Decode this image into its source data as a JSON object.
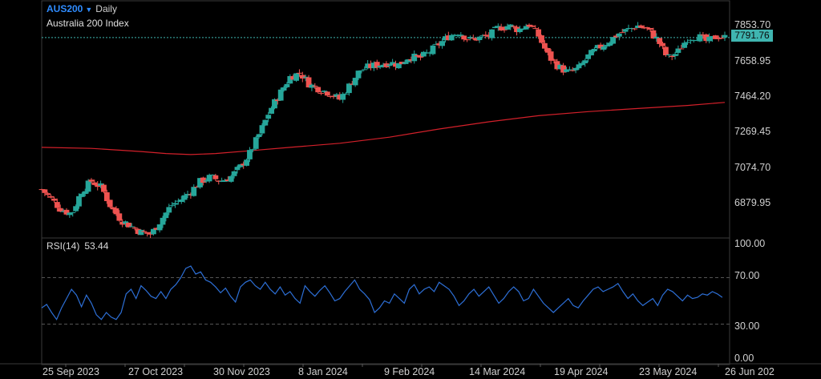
{
  "header": {
    "symbol": "AUS200",
    "period": "Daily",
    "subtitle": "Australia 200 Index",
    "dropdown_icon": "caret-down-icon"
  },
  "last_price": "7791.76",
  "rsi": {
    "label": "RSI(14)",
    "value": "53.44"
  },
  "price_axis": [
    "7853.70",
    "7658.95",
    "7464.20",
    "7269.45",
    "7074.70",
    "6879.95"
  ],
  "rsi_axis": [
    "100.00",
    "70.00",
    "30.00",
    "0.00"
  ],
  "x_axis": [
    "25 Sep 2023",
    "27 Oct 2023",
    "30 Nov 2023",
    "8 Jan 2024",
    "9 Feb 2024",
    "14 Mar 2024",
    "19 Apr 2024",
    "23 May 2024",
    "26 Jun 202"
  ],
  "colors": {
    "up": "#26a69a",
    "down": "#ef5350",
    "ma": "#d3202a",
    "rsi": "#2d6fd6",
    "last_line": "#3fb5b0",
    "badge": "#3fb5b0"
  },
  "chart_data": {
    "type": "candlestick",
    "price_range": [
      6820,
      7905
    ],
    "rsi_range": [
      0,
      100
    ],
    "rsi_levels": [
      70,
      30
    ],
    "x_range_days": [
      0,
      275
    ],
    "closes": [
      [
        0,
        7050
      ],
      [
        4,
        7000
      ],
      [
        8,
        6950
      ],
      [
        12,
        6930
      ],
      [
        16,
        7040
      ],
      [
        20,
        7090
      ],
      [
        24,
        7060
      ],
      [
        28,
        6960
      ],
      [
        32,
        6900
      ],
      [
        36,
        6870
      ],
      [
        40,
        6840
      ],
      [
        44,
        6830
      ],
      [
        48,
        6900
      ],
      [
        52,
        6970
      ],
      [
        56,
        7000
      ],
      [
        60,
        7040
      ],
      [
        64,
        7090
      ],
      [
        68,
        7110
      ],
      [
        72,
        7090
      ],
      [
        76,
        7110
      ],
      [
        80,
        7160
      ],
      [
        84,
        7230
      ],
      [
        88,
        7330
      ],
      [
        92,
        7440
      ],
      [
        96,
        7520
      ],
      [
        100,
        7600
      ],
      [
        104,
        7620
      ],
      [
        108,
        7560
      ],
      [
        112,
        7540
      ],
      [
        116,
        7520
      ],
      [
        120,
        7490
      ],
      [
        124,
        7560
      ],
      [
        128,
        7630
      ],
      [
        132,
        7650
      ],
      [
        136,
        7660
      ],
      [
        140,
        7670
      ],
      [
        144,
        7660
      ],
      [
        148,
        7700
      ],
      [
        152,
        7690
      ],
      [
        156,
        7720
      ],
      [
        160,
        7760
      ],
      [
        164,
        7800
      ],
      [
        168,
        7820
      ],
      [
        172,
        7780
      ],
      [
        176,
        7790
      ],
      [
        180,
        7800
      ],
      [
        184,
        7840
      ],
      [
        188,
        7850
      ],
      [
        192,
        7830
      ],
      [
        196,
        7860
      ],
      [
        200,
        7800
      ],
      [
        204,
        7700
      ],
      [
        208,
        7650
      ],
      [
        212,
        7620
      ],
      [
        216,
        7640
      ],
      [
        220,
        7700
      ],
      [
        224,
        7740
      ],
      [
        228,
        7770
      ],
      [
        232,
        7810
      ],
      [
        236,
        7830
      ],
      [
        240,
        7850
      ],
      [
        244,
        7830
      ],
      [
        248,
        7780
      ],
      [
        252,
        7690
      ],
      [
        256,
        7720
      ],
      [
        260,
        7790
      ],
      [
        264,
        7800
      ],
      [
        268,
        7770
      ],
      [
        272,
        7800
      ],
      [
        275,
        7792
      ]
    ],
    "ma_points": [
      [
        0,
        7255
      ],
      [
        20,
        7250
      ],
      [
        40,
        7235
      ],
      [
        50,
        7225
      ],
      [
        60,
        7220
      ],
      [
        70,
        7225
      ],
      [
        85,
        7240
      ],
      [
        100,
        7255
      ],
      [
        120,
        7275
      ],
      [
        140,
        7305
      ],
      [
        160,
        7345
      ],
      [
        180,
        7380
      ],
      [
        200,
        7410
      ],
      [
        220,
        7430
      ],
      [
        240,
        7445
      ],
      [
        260,
        7460
      ],
      [
        275,
        7475
      ]
    ],
    "rsi_values": [
      [
        0,
        44
      ],
      [
        2,
        47
      ],
      [
        4,
        40
      ],
      [
        6,
        34
      ],
      [
        8,
        44
      ],
      [
        10,
        52
      ],
      [
        12,
        60
      ],
      [
        14,
        55
      ],
      [
        16,
        45
      ],
      [
        18,
        55
      ],
      [
        20,
        48
      ],
      [
        22,
        38
      ],
      [
        24,
        34
      ],
      [
        26,
        40
      ],
      [
        28,
        36
      ],
      [
        30,
        34
      ],
      [
        32,
        40
      ],
      [
        34,
        56
      ],
      [
        36,
        60
      ],
      [
        38,
        52
      ],
      [
        40,
        63
      ],
      [
        42,
        59
      ],
      [
        44,
        54
      ],
      [
        46,
        52
      ],
      [
        48,
        58
      ],
      [
        50,
        52
      ],
      [
        52,
        60
      ],
      [
        54,
        64
      ],
      [
        56,
        70
      ],
      [
        58,
        78
      ],
      [
        60,
        80
      ],
      [
        62,
        73
      ],
      [
        64,
        75
      ],
      [
        66,
        68
      ],
      [
        68,
        66
      ],
      [
        70,
        62
      ],
      [
        72,
        57
      ],
      [
        74,
        61
      ],
      [
        76,
        54
      ],
      [
        78,
        49
      ],
      [
        80,
        62
      ],
      [
        82,
        66
      ],
      [
        84,
        68
      ],
      [
        86,
        63
      ],
      [
        88,
        60
      ],
      [
        90,
        66
      ],
      [
        92,
        60
      ],
      [
        94,
        56
      ],
      [
        96,
        62
      ],
      [
        98,
        55
      ],
      [
        100,
        58
      ],
      [
        102,
        52
      ],
      [
        104,
        48
      ],
      [
        106,
        63
      ],
      [
        108,
        58
      ],
      [
        110,
        54
      ],
      [
        112,
        59
      ],
      [
        114,
        63
      ],
      [
        116,
        57
      ],
      [
        118,
        50
      ],
      [
        120,
        52
      ],
      [
        122,
        58
      ],
      [
        124,
        63
      ],
      [
        126,
        68
      ],
      [
        128,
        60
      ],
      [
        130,
        56
      ],
      [
        132,
        51
      ],
      [
        134,
        40
      ],
      [
        136,
        44
      ],
      [
        138,
        50
      ],
      [
        140,
        48
      ],
      [
        142,
        56
      ],
      [
        144,
        52
      ],
      [
        146,
        48
      ],
      [
        148,
        60
      ],
      [
        150,
        64
      ],
      [
        152,
        56
      ],
      [
        154,
        60
      ],
      [
        156,
        62
      ],
      [
        158,
        58
      ],
      [
        160,
        66
      ],
      [
        162,
        63
      ],
      [
        164,
        60
      ],
      [
        166,
        54
      ],
      [
        168,
        46
      ],
      [
        170,
        50
      ],
      [
        172,
        56
      ],
      [
        174,
        60
      ],
      [
        176,
        54
      ],
      [
        178,
        58
      ],
      [
        180,
        62
      ],
      [
        182,
        55
      ],
      [
        184,
        48
      ],
      [
        186,
        52
      ],
      [
        188,
        58
      ],
      [
        190,
        62
      ],
      [
        192,
        58
      ],
      [
        194,
        50
      ],
      [
        196,
        52
      ],
      [
        198,
        60
      ],
      [
        200,
        54
      ],
      [
        202,
        48
      ],
      [
        204,
        44
      ],
      [
        206,
        40
      ],
      [
        208,
        44
      ],
      [
        210,
        48
      ],
      [
        212,
        52
      ],
      [
        214,
        46
      ],
      [
        216,
        44
      ],
      [
        218,
        50
      ],
      [
        220,
        55
      ],
      [
        222,
        60
      ],
      [
        224,
        62
      ],
      [
        226,
        58
      ],
      [
        228,
        60
      ],
      [
        230,
        62
      ],
      [
        232,
        65
      ],
      [
        234,
        58
      ],
      [
        236,
        52
      ],
      [
        238,
        56
      ],
      [
        240,
        50
      ],
      [
        242,
        46
      ],
      [
        244,
        49
      ],
      [
        246,
        52
      ],
      [
        248,
        46
      ],
      [
        250,
        55
      ],
      [
        252,
        60
      ],
      [
        254,
        58
      ],
      [
        256,
        54
      ],
      [
        258,
        50
      ],
      [
        260,
        55
      ],
      [
        262,
        52
      ],
      [
        264,
        53
      ],
      [
        266,
        56
      ],
      [
        268,
        55
      ],
      [
        270,
        58
      ],
      [
        272,
        56
      ],
      [
        274,
        53
      ]
    ]
  }
}
